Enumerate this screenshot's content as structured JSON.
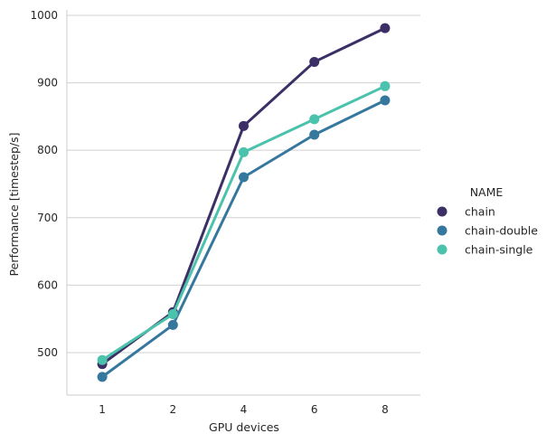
{
  "chart_data": {
    "type": "line",
    "title": "",
    "xlabel": "GPU devices",
    "ylabel": "Performance [timestep/s]",
    "categories": [
      "1",
      "2",
      "4",
      "6",
      "8"
    ],
    "ylim": [
      437,
      1008
    ],
    "yticks": [
      500,
      600,
      700,
      800,
      900,
      1000
    ],
    "grid": "horizontal",
    "legend_position": "right",
    "legend_title": "NAME",
    "series": [
      {
        "name": "chain",
        "color": "#3b2f66",
        "values": [
          483,
          560,
          836,
          931,
          981
        ]
      },
      {
        "name": "chain-double",
        "color": "#36779e",
        "values": [
          464,
          541,
          760,
          823,
          874
        ]
      },
      {
        "name": "chain-single",
        "color": "#4bc2ac",
        "values": [
          489,
          557,
          797,
          846,
          895
        ]
      }
    ]
  }
}
